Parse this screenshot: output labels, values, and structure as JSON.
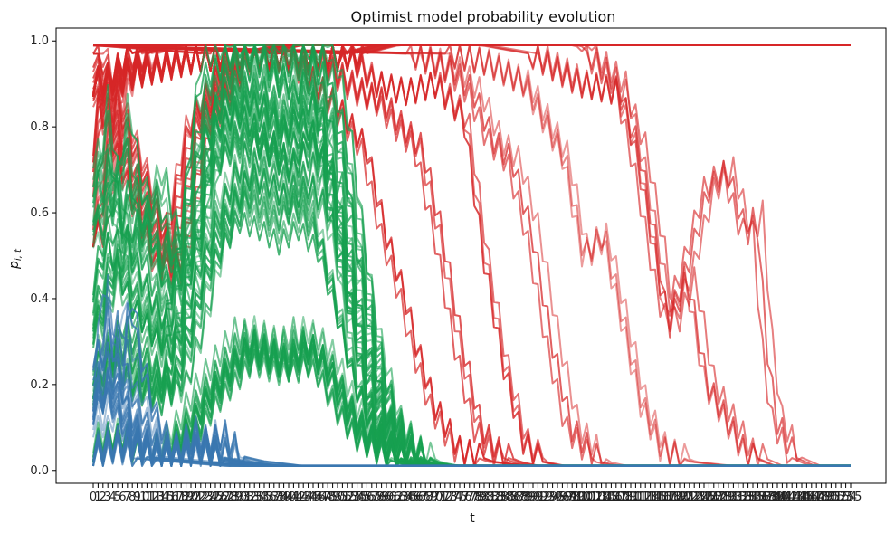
{
  "chart_data": {
    "type": "line",
    "title": "Optimist model probability evolution",
    "xlabel": "t",
    "ylabel": "p",
    "ylabel_subscript": "i, t",
    "xlim": [
      0,
      155
    ],
    "ylim": [
      -0.03,
      1.03
    ],
    "yticks": [
      0.0,
      0.2,
      0.4,
      0.6,
      0.8,
      1.0
    ],
    "ytick_labels": [
      "0.0",
      "0.2",
      "0.4",
      "0.6",
      "0.8",
      "1.0"
    ],
    "x_tick_count": 156,
    "grid": false,
    "colors": {
      "red_series": "#d62728",
      "green_series": "#17a050",
      "blue_series": "#3a77b0"
    },
    "series_groups": [
      {
        "color_key": "red_series",
        "final_value": 0.99,
        "curves": [
          {
            "peak": 0.99,
            "points": [
              [
                0,
                0.55
              ],
              [
                2,
                0.7
              ],
              [
                4,
                0.88
              ],
              [
                6,
                0.92
              ],
              [
                10,
                0.97
              ],
              [
                16,
                0.99
              ],
              [
                155,
                0.99
              ]
            ]
          },
          {
            "points": [
              [
                0,
                0.9
              ],
              [
                10,
                0.93
              ],
              [
                20,
                0.96
              ],
              [
                30,
                0.96
              ],
              [
                36,
                0.98
              ],
              [
                40,
                0.99
              ],
              [
                155,
                0.99
              ]
            ]
          },
          {
            "points": [
              [
                0,
                0.97
              ],
              [
                16,
                0.46
              ],
              [
                22,
                0.8
              ],
              [
                30,
                0.96
              ],
              [
                40,
                0.97
              ],
              [
                50,
                0.96
              ],
              [
                60,
                0.99
              ],
              [
                155,
                0.99
              ]
            ]
          },
          {
            "points": [
              [
                0,
                0.99
              ],
              [
                40,
                0.97
              ],
              [
                50,
                0.85
              ],
              [
                56,
                0.75
              ],
              [
                60,
                0.55
              ],
              [
                64,
                0.4
              ],
              [
                66,
                0.3
              ],
              [
                70,
                0.15
              ],
              [
                75,
                0.05
              ],
              [
                82,
                0.02
              ],
              [
                90,
                0.01
              ],
              [
                155,
                0.01
              ]
            ]
          },
          {
            "points": [
              [
                0,
                0.99
              ],
              [
                46,
                0.95
              ],
              [
                54,
                0.88
              ],
              [
                58,
                0.86
              ],
              [
                62,
                0.8
              ],
              [
                66,
                0.75
              ],
              [
                70,
                0.55
              ],
              [
                74,
                0.3
              ],
              [
                78,
                0.1
              ],
              [
                82,
                0.04
              ],
              [
                86,
                0.02
              ],
              [
                90,
                0.01
              ],
              [
                155,
                0.01
              ]
            ]
          },
          {
            "points": [
              [
                0,
                0.99
              ],
              [
                52,
                0.97
              ],
              [
                58,
                0.9
              ],
              [
                64,
                0.88
              ],
              [
                70,
                0.9
              ],
              [
                76,
                0.82
              ],
              [
                80,
                0.5
              ],
              [
                84,
                0.25
              ],
              [
                88,
                0.07
              ],
              [
                92,
                0.02
              ],
              [
                96,
                0.01
              ],
              [
                155,
                0.01
              ]
            ]
          },
          {
            "points": [
              [
                0,
                0.99
              ],
              [
                66,
                0.97
              ],
              [
                74,
                0.93
              ],
              [
                78,
                0.88
              ],
              [
                82,
                0.77
              ],
              [
                86,
                0.72
              ],
              [
                90,
                0.55
              ],
              [
                94,
                0.3
              ],
              [
                98,
                0.1
              ],
              [
                104,
                0.02
              ],
              [
                108,
                0.01
              ],
              [
                155,
                0.01
              ]
            ]
          },
          {
            "points": [
              [
                0,
                0.99
              ],
              [
                72,
                0.97
              ],
              [
                80,
                0.95
              ],
              [
                88,
                0.9
              ],
              [
                96,
                0.73
              ],
              [
                100,
                0.5
              ],
              [
                104,
                0.55
              ],
              [
                108,
                0.35
              ],
              [
                112,
                0.15
              ],
              [
                116,
                0.05
              ],
              [
                122,
                0.02
              ],
              [
                130,
                0.01
              ],
              [
                155,
                0.01
              ]
            ]
          },
          {
            "points": [
              [
                0,
                0.99
              ],
              [
                80,
                0.99
              ],
              [
                90,
                0.97
              ],
              [
                100,
                0.9
              ],
              [
                108,
                0.88
              ],
              [
                112,
                0.75
              ],
              [
                116,
                0.5
              ],
              [
                118,
                0.33
              ],
              [
                122,
                0.45
              ],
              [
                126,
                0.2
              ],
              [
                130,
                0.12
              ],
              [
                134,
                0.04
              ],
              [
                140,
                0.01
              ],
              [
                155,
                0.01
              ]
            ]
          },
          {
            "points": [
              [
                0,
                0.99
              ],
              [
                100,
                0.99
              ],
              [
                108,
                0.9
              ],
              [
                112,
                0.7
              ],
              [
                116,
                0.45
              ],
              [
                118,
                0.35
              ],
              [
                122,
                0.48
              ],
              [
                126,
                0.65
              ],
              [
                130,
                0.7
              ],
              [
                134,
                0.55
              ],
              [
                136,
                0.6
              ],
              [
                138,
                0.3
              ],
              [
                140,
                0.12
              ],
              [
                144,
                0.03
              ],
              [
                148,
                0.01
              ],
              [
                155,
                0.01
              ]
            ]
          }
        ]
      },
      {
        "color_key": "green_series",
        "final_value": 0.01,
        "curves": [
          {
            "points": [
              [
                0,
                0.65
              ],
              [
                3,
                0.6
              ],
              [
                5,
                0.77
              ],
              [
                8,
                0.55
              ],
              [
                12,
                0.62
              ],
              [
                16,
                0.45
              ],
              [
                20,
                0.5
              ],
              [
                24,
                0.85
              ],
              [
                28,
                0.88
              ],
              [
                32,
                0.93
              ],
              [
                36,
                0.92
              ],
              [
                40,
                0.85
              ],
              [
                44,
                0.92
              ],
              [
                46,
                0.94
              ],
              [
                50,
                0.72
              ],
              [
                54,
                0.4
              ],
              [
                58,
                0.15
              ],
              [
                62,
                0.04
              ],
              [
                66,
                0.015
              ],
              [
                70,
                0.01
              ],
              [
                155,
                0.01
              ]
            ]
          },
          {
            "points": [
              [
                0,
                0.35
              ],
              [
                5,
                0.55
              ],
              [
                10,
                0.4
              ],
              [
                16,
                0.3
              ],
              [
                20,
                0.55
              ],
              [
                24,
                0.78
              ],
              [
                28,
                0.84
              ],
              [
                32,
                0.86
              ],
              [
                36,
                0.82
              ],
              [
                40,
                0.78
              ],
              [
                44,
                0.86
              ],
              [
                48,
                0.8
              ],
              [
                52,
                0.55
              ],
              [
                56,
                0.3
              ],
              [
                60,
                0.12
              ],
              [
                64,
                0.05
              ],
              [
                68,
                0.02
              ],
              [
                72,
                0.01
              ],
              [
                155,
                0.01
              ]
            ]
          },
          {
            "points": [
              [
                0,
                0.18
              ],
              [
                5,
                0.3
              ],
              [
                10,
                0.22
              ],
              [
                16,
                0.18
              ],
              [
                20,
                0.32
              ],
              [
                24,
                0.5
              ],
              [
                28,
                0.6
              ],
              [
                32,
                0.68
              ],
              [
                36,
                0.66
              ],
              [
                40,
                0.62
              ],
              [
                44,
                0.66
              ],
              [
                48,
                0.6
              ],
              [
                52,
                0.42
              ],
              [
                56,
                0.22
              ],
              [
                60,
                0.1
              ],
              [
                64,
                0.04
              ],
              [
                68,
                0.015
              ],
              [
                72,
                0.01
              ],
              [
                155,
                0.01
              ]
            ]
          },
          {
            "points": [
              [
                0,
                0.05
              ],
              [
                5,
                0.08
              ],
              [
                10,
                0.05
              ],
              [
                16,
                0.05
              ],
              [
                20,
                0.1
              ],
              [
                24,
                0.18
              ],
              [
                28,
                0.24
              ],
              [
                32,
                0.3
              ],
              [
                36,
                0.28
              ],
              [
                40,
                0.26
              ],
              [
                44,
                0.3
              ],
              [
                48,
                0.25
              ],
              [
                52,
                0.15
              ],
              [
                56,
                0.08
              ],
              [
                60,
                0.05
              ],
              [
                64,
                0.02
              ],
              [
                68,
                0.01
              ],
              [
                155,
                0.01
              ]
            ]
          }
        ]
      },
      {
        "color_key": "blue_series",
        "final_value": 0.01,
        "curves": [
          {
            "points": [
              [
                0,
                0.25
              ],
              [
                3,
                0.15
              ],
              [
                5,
                0.39
              ],
              [
                7,
                0.25
              ],
              [
                10,
                0.12
              ],
              [
                13,
                0.06
              ],
              [
                16,
                0.03
              ],
              [
                20,
                0.05
              ],
              [
                24,
                0.08
              ],
              [
                28,
                0.03
              ],
              [
                32,
                0.02
              ],
              [
                40,
                0.01
              ],
              [
                155,
                0.01
              ]
            ]
          },
          {
            "points": [
              [
                0,
                0.12
              ],
              [
                5,
                0.2
              ],
              [
                10,
                0.08
              ],
              [
                16,
                0.03
              ],
              [
                24,
                0.05
              ],
              [
                30,
                0.02
              ],
              [
                36,
                0.01
              ],
              [
                155,
                0.01
              ]
            ]
          },
          {
            "points": [
              [
                0,
                0.04
              ],
              [
                5,
                0.07
              ],
              [
                10,
                0.03
              ],
              [
                20,
                0.02
              ],
              [
                30,
                0.01
              ],
              [
                155,
                0.01
              ]
            ]
          }
        ]
      }
    ]
  }
}
